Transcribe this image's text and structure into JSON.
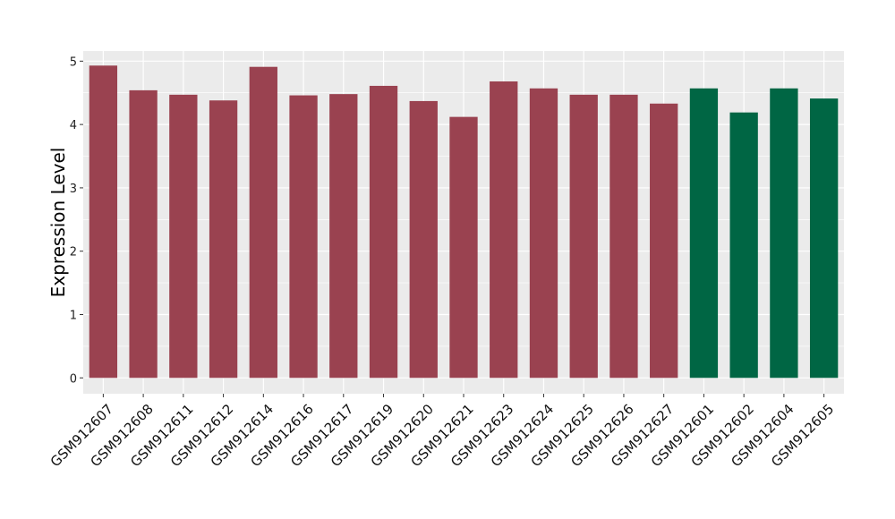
{
  "chart_data": {
    "type": "bar",
    "categories": [
      "GSM912607",
      "GSM912608",
      "GSM912611",
      "GSM912612",
      "GSM912614",
      "GSM912616",
      "GSM912617",
      "GSM912619",
      "GSM912620",
      "GSM912621",
      "GSM912623",
      "GSM912624",
      "GSM912625",
      "GSM912626",
      "GSM912627",
      "GSM912601",
      "GSM912602",
      "GSM912604",
      "GSM912605"
    ],
    "values": [
      4.93,
      4.54,
      4.47,
      4.38,
      4.91,
      4.46,
      4.48,
      4.61,
      4.37,
      4.12,
      4.68,
      4.57,
      4.47,
      4.47,
      4.33,
      4.57,
      4.19,
      4.57,
      4.41
    ],
    "groups": [
      "a",
      "a",
      "a",
      "a",
      "a",
      "a",
      "a",
      "a",
      "a",
      "a",
      "a",
      "a",
      "a",
      "a",
      "a",
      "b",
      "b",
      "b",
      "b"
    ],
    "colors": {
      "a": "#9a4250",
      "b": "#006644"
    },
    "title": "",
    "xlabel": "",
    "ylabel": "Expression Level",
    "ylim": [
      -0.25,
      5.16
    ],
    "yticks": [
      0,
      1,
      2,
      3,
      4,
      5
    ],
    "ytick_labels": [
      "0",
      "1",
      "2",
      "3",
      "4",
      "5"
    ],
    "grid": true,
    "panel_background": "#ebebeb",
    "grid_color": "#ffffff"
  }
}
